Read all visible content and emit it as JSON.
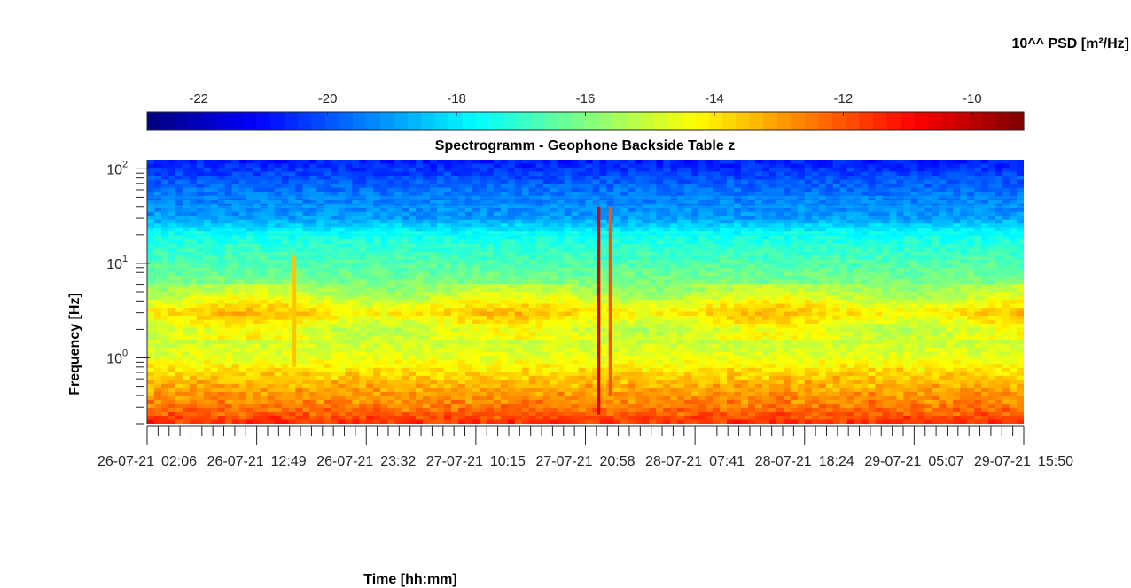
{
  "chart_data": {
    "type": "heatmap",
    "title": "Spectrogramm - Geophone Backside Table z",
    "xlabel": "Time [hh:mm]",
    "ylabel": "Frequency [Hz]",
    "colorbar_label": "10^^ PSD [m²/Hz]",
    "colormap": "jet",
    "color_range": [
      -22.8,
      -9.2
    ],
    "colorbar_ticks": [
      "-22",
      "-20",
      "-18",
      "-16",
      "-14",
      "-12",
      "-10"
    ],
    "colorbar_tick_values": [
      -22,
      -20,
      -18,
      -16,
      -14,
      -12,
      -10
    ],
    "y_scale": "log",
    "ylim": [
      0.2,
      125
    ],
    "y_ticks": [
      {
        "value": 1,
        "label": "10",
        "exp": "0"
      },
      {
        "value": 10,
        "label": "10",
        "exp": "1"
      },
      {
        "value": 100,
        "label": "10",
        "exp": "2"
      }
    ],
    "x_tick_labels": [
      "26-07-21  02:06",
      "26-07-21  12:49",
      "26-07-21  23:32",
      "27-07-21  10:15",
      "27-07-21  20:58",
      "28-07-21  07:41",
      "28-07-21  18:24",
      "29-07-21  05:07",
      "29-07-21  15:50"
    ],
    "xlim": [
      "26-07-21 02:06",
      "29-07-21 15:50"
    ],
    "grid": false,
    "features": [
      {
        "type": "transient",
        "time": "27-07-21 22:15",
        "freq_range_hz": [
          0.25,
          40
        ],
        "psd_log10": -10.5
      },
      {
        "type": "transient",
        "time": "27-07-21 23:25",
        "freq_range_hz": [
          0.4,
          40
        ],
        "psd_log10": -12
      },
      {
        "type": "transient",
        "time": "26-07-21 16:30",
        "freq_range_hz": [
          0.8,
          12
        ],
        "psd_log10": -13.5
      }
    ],
    "psd_profile": [
      {
        "freq_hz": 0.2,
        "psd_log10": -11.5
      },
      {
        "freq_hz": 0.3,
        "psd_log10": -12.5
      },
      {
        "freq_hz": 0.5,
        "psd_log10": -13.2
      },
      {
        "freq_hz": 0.7,
        "psd_log10": -13.8
      },
      {
        "freq_hz": 1.0,
        "psd_log10": -14.6
      },
      {
        "freq_hz": 2.0,
        "psd_log10": -15.3
      },
      {
        "freq_hz": 3.0,
        "psd_log10": -14.2
      },
      {
        "freq_hz": 5.0,
        "psd_log10": -15.8
      },
      {
        "freq_hz": 10.0,
        "psd_log10": -16.6
      },
      {
        "freq_hz": 20.0,
        "psd_log10": -17.5
      },
      {
        "freq_hz": 30.0,
        "psd_log10": -19.0
      },
      {
        "freq_hz": 60.0,
        "psd_log10": -19.6
      },
      {
        "freq_hz": 125.0,
        "psd_log10": -20.8
      }
    ]
  }
}
